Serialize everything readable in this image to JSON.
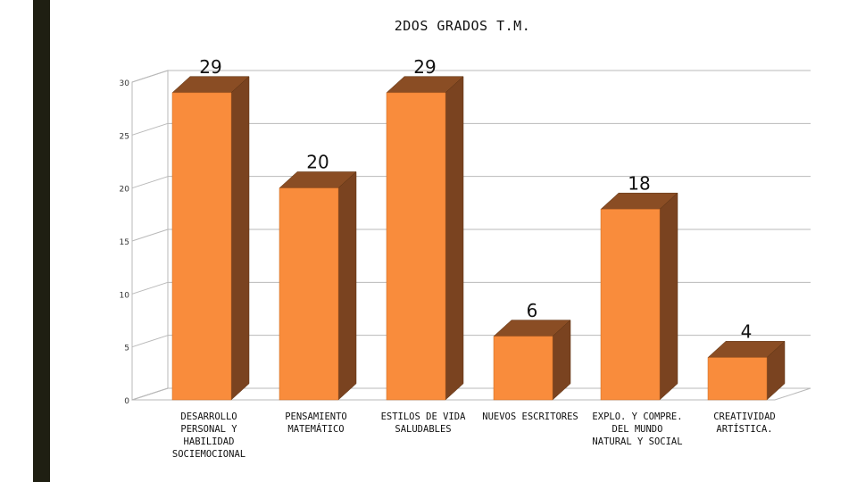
{
  "chart_data": {
    "type": "bar",
    "title": "2DOS GRADOS T.M.",
    "categories": [
      "DESARROLLO PERSONAL Y HABILIDAD SOCIEMOCIONAL",
      "PENSAMIENTO MATEMÁTICO",
      "ESTILOS DE VIDA SALUDABLES",
      "NUEVOS ESCRITORES",
      "EXPLO. Y COMPRE. DEL MUNDO NATURAL Y SOCIAL",
      "CREATIVIDAD ARTÍSTICA."
    ],
    "category_lines": [
      [
        "DESARROLLO",
        "PERSONAL Y",
        "HABILIDAD",
        "SOCIEMOCIONAL"
      ],
      [
        "PENSAMIENTO",
        "MATEMÁTICO"
      ],
      [
        "ESTILOS DE VIDA",
        "SALUDABLES"
      ],
      [
        "NUEVOS ESCRITORES"
      ],
      [
        "EXPLO. Y COMPRE.",
        "DEL MUNDO",
        "NATURAL Y SOCIAL"
      ],
      [
        "CREATIVIDAD",
        "ARTÍSTICA."
      ]
    ],
    "values": [
      29,
      20,
      29,
      6,
      18,
      4
    ],
    "data_labels": [
      "29",
      "20",
      "29",
      "6",
      "18",
      "4"
    ],
    "yticks": [
      "0",
      "5",
      "10",
      "15",
      "20",
      "25",
      "30"
    ],
    "ylim": [
      0,
      30
    ],
    "grid": true,
    "legend": "none",
    "colors": {
      "bar_front": "#f98c3c",
      "bar_side": "#7a4320",
      "bar_top": "#8a4d24",
      "grid": "#b9b9b9",
      "stripe": "#1f1f12"
    }
  }
}
